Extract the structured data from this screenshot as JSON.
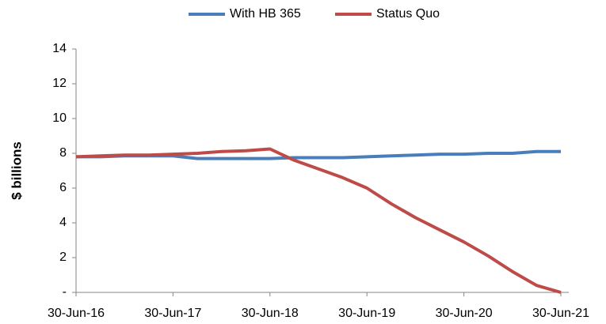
{
  "chart_data": {
    "type": "line",
    "y_label": "$ billions",
    "categories": [
      "30-Jun-16",
      null,
      null,
      null,
      "30-Jun-17",
      null,
      null,
      null,
      "30-Jun-18",
      null,
      null,
      null,
      "30-Jun-19",
      null,
      null,
      null,
      "30-Jun-20",
      null,
      null,
      null,
      "30-Jun-21"
    ],
    "series": [
      {
        "name": "With HB 365",
        "color": "#4a7ebb",
        "values": [
          7.8,
          7.8,
          7.85,
          7.85,
          7.85,
          7.7,
          7.7,
          7.7,
          7.7,
          7.75,
          7.75,
          7.75,
          7.8,
          7.85,
          7.9,
          7.95,
          7.95,
          8.0,
          8.0,
          8.1,
          8.1
        ]
      },
      {
        "name": "Status Quo",
        "color": "#be4b48",
        "values": [
          7.8,
          7.85,
          7.9,
          7.9,
          7.95,
          8.0,
          8.1,
          8.15,
          8.25,
          7.6,
          7.1,
          6.6,
          6.0,
          5.1,
          4.3,
          3.6,
          2.9,
          2.1,
          1.2,
          0.4,
          0.0
        ]
      }
    ],
    "ylim": [
      0,
      14
    ],
    "yticks": [
      {
        "value": 0,
        "label": "-"
      },
      2,
      4,
      6,
      8,
      10,
      12,
      14
    ],
    "legend": "top",
    "grid": false
  }
}
